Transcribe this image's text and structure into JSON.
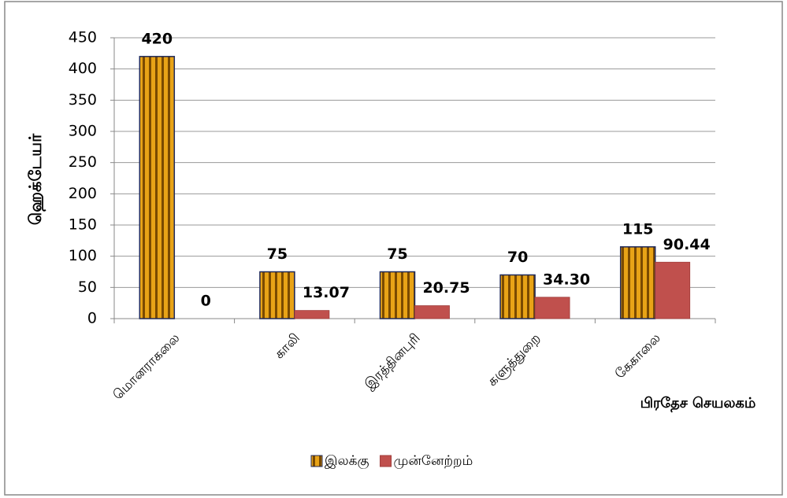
{
  "chart_data": {
    "type": "bar",
    "y_label": "ஹெக்டேயர்",
    "x_label": "பிரதேச செயலகம்",
    "categories": [
      "மொனராகலை",
      "காலி",
      "இரத்தினபுரி",
      "களுத்துறை",
      "கேகாலை"
    ],
    "series": [
      {
        "name": "இலக்கு",
        "color": "#e8a317",
        "values": [
          420,
          75,
          75,
          70,
          115
        ]
      },
      {
        "name": "முன்னேற்றம்",
        "color": "#c0504d",
        "values": [
          0,
          13.07,
          20.75,
          34.3,
          90.44
        ],
        "value_labels": [
          "0",
          "13.07",
          "20.75",
          "34.30",
          "90.44"
        ]
      }
    ],
    "ylim": [
      0,
      450
    ],
    "yticks": [
      0,
      50,
      100,
      150,
      200,
      250,
      300,
      350,
      400,
      450
    ],
    "grid": true
  }
}
